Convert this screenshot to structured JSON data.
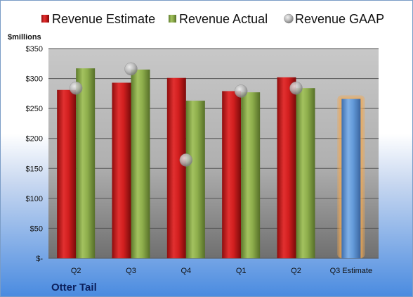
{
  "chart_data": {
    "type": "bar",
    "company": "Otter Tail",
    "ylabel": "$millions",
    "ylim": [
      0,
      350
    ],
    "yticks": [
      0,
      50,
      100,
      150,
      200,
      250,
      300,
      350
    ],
    "ytick_labels": [
      "$-",
      "$50",
      "$100",
      "$150",
      "$200",
      "$250",
      "$300",
      "$350"
    ],
    "categories": [
      "Q2",
      "Q3",
      "Q4",
      "Q1",
      "Q2",
      "Q3 Estimate"
    ],
    "legend_position": "top",
    "grid": true,
    "series": [
      {
        "name": "Revenue Estimate",
        "kind": "bar",
        "color": "#c81a1a",
        "values": [
          281,
          293,
          301,
          279,
          302,
          null
        ]
      },
      {
        "name": "Revenue Actual",
        "kind": "bar",
        "color": "#8aac4a",
        "values": [
          317,
          315,
          263,
          277,
          284,
          null
        ]
      },
      {
        "name": "Revenue GAAP",
        "kind": "marker",
        "color": "#b8b8b8",
        "values": [
          284,
          316,
          164,
          279,
          284,
          null
        ]
      }
    ],
    "estimate_bar": {
      "category": "Q3 Estimate",
      "value": 266,
      "color": "#5b93d3",
      "glow_color": "#f4a94f"
    }
  }
}
